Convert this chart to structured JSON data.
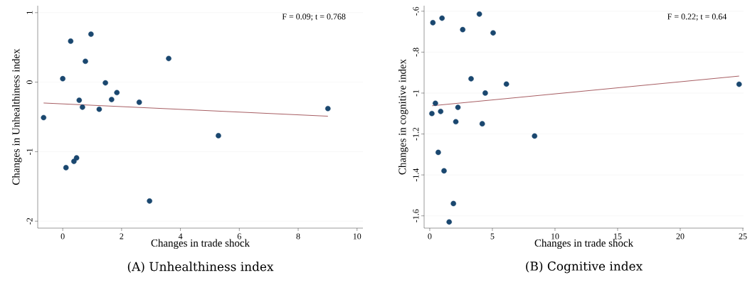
{
  "chart_data": [
    {
      "type": "scatter",
      "title": "(A) Unhealthiness index",
      "xlabel": "Changes in trade shock",
      "ylabel": "Changes in Unhealthiness index",
      "annotations": [
        "F = 0.09; t = 0.768"
      ],
      "xlim": [
        -0.85,
        10.2
      ],
      "ylim": [
        -2.1,
        1.1
      ],
      "xticks": [
        0,
        2,
        4,
        6,
        8,
        10
      ],
      "yticks": [
        -2,
        -1,
        0,
        1
      ],
      "grid": "y",
      "series": [
        {
          "marker": "circle",
          "color": "#1a476f",
          "x": [
            -0.65,
            0.0,
            0.11,
            0.27,
            0.38,
            0.47,
            0.56,
            0.67,
            0.77,
            0.96,
            1.24,
            1.45,
            1.66,
            1.84,
            2.6,
            2.95,
            3.6,
            5.29,
            9.01
          ],
          "values": [
            -0.51,
            0.05,
            -1.23,
            0.59,
            -1.14,
            -1.09,
            -0.26,
            -0.36,
            0.3,
            0.69,
            -0.39,
            -0.01,
            -0.25,
            -0.15,
            -0.29,
            -1.71,
            0.34,
            -0.77,
            -0.38
          ]
        },
        {
          "type": "line",
          "color": "#90353b",
          "x": [
            -0.65,
            9.01
          ],
          "values": [
            -0.3,
            -0.49
          ]
        }
      ]
    },
    {
      "type": "scatter",
      "title": "(B) Cognitive index",
      "xlabel": "Changes in trade shock",
      "ylabel": "Changes in cognitive index",
      "annotations": [
        "F = 0.22; t = 0.64"
      ],
      "xlim": [
        -0.45,
        25.06
      ],
      "ylim": [
        -1.66,
        -0.573
      ],
      "xticks": [
        0,
        5,
        10,
        15,
        20,
        25
      ],
      "yticks": [
        {
          "value": -1.6,
          "label": "-1.6"
        },
        {
          "value": -1.4,
          "label": "-1.4"
        },
        {
          "value": -1.2,
          "label": "-1.2"
        },
        {
          "value": -1,
          "label": "-1"
        },
        {
          "value": -0.8,
          "label": "-.8"
        },
        {
          "value": -0.6,
          "label": "-.6"
        }
      ],
      "grid": "y",
      "series": [
        {
          "marker": "circle",
          "color": "#1a476f",
          "x": [
            0.17,
            0.25,
            0.45,
            0.68,
            0.87,
            0.98,
            1.14,
            1.55,
            1.89,
            2.08,
            2.25,
            2.63,
            3.3,
            3.96,
            4.19,
            4.43,
            5.06,
            6.12,
            8.37,
            24.7
          ],
          "values": [
            -1.1,
            -0.656,
            -1.05,
            -1.29,
            -1.09,
            -0.634,
            -1.38,
            -1.63,
            -1.54,
            -1.14,
            -1.07,
            -0.69,
            -0.93,
            -0.614,
            -1.15,
            -1.0,
            -0.706,
            -0.956,
            -1.21,
            -0.957
          ]
        },
        {
          "type": "line",
          "color": "#90353b",
          "x": [
            0.19,
            24.7
          ],
          "values": [
            -1.062,
            -0.917
          ]
        }
      ]
    }
  ]
}
